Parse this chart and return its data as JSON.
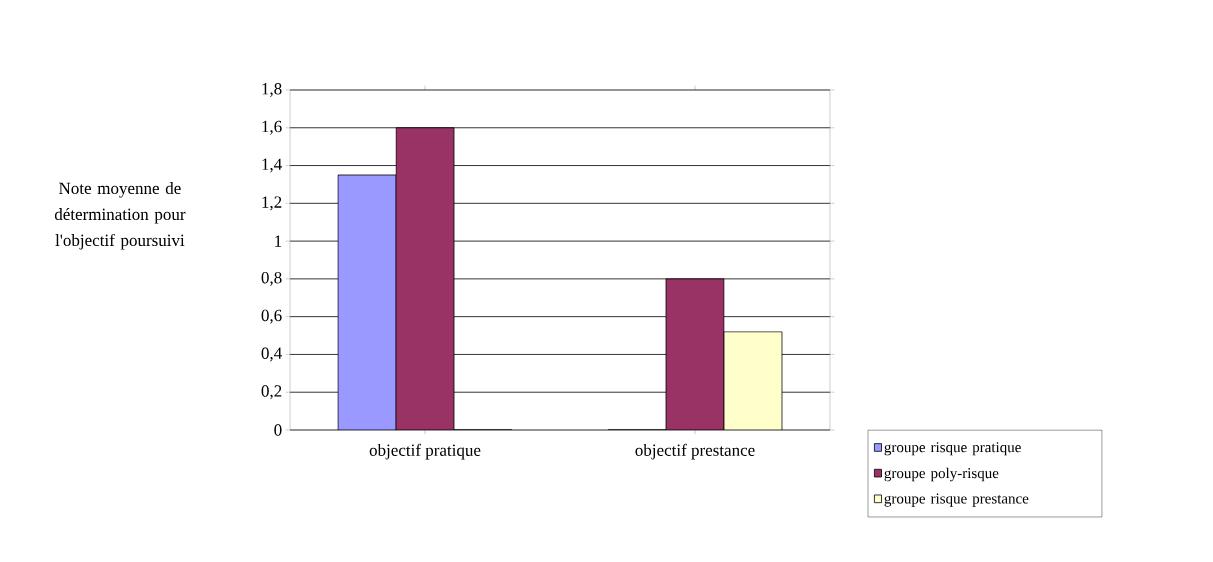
{
  "chart_data": {
    "type": "bar",
    "ylabel": "Note moyenne de détermination pour l'objectif poursuivi",
    "categories": [
      "objectif pratique",
      "objectif prestance"
    ],
    "series": [
      {
        "name": "groupe risque pratique",
        "color": "#9999ff",
        "values": [
          1.35,
          0
        ]
      },
      {
        "name": "groupe poly-risque",
        "color": "#993366",
        "values": [
          1.6,
          0.8
        ]
      },
      {
        "name": "groupe risque prestance",
        "color": "#ffffcc",
        "values": [
          0,
          0.52
        ]
      }
    ],
    "ylim": [
      0,
      1.8
    ],
    "yticks": [
      0,
      {
        "value": 0.2,
        "label": "0,2"
      },
      {
        "value": 0.4,
        "label": "0,4"
      },
      {
        "value": 0.6,
        "label": "0,6"
      },
      {
        "value": 0.8,
        "label": "0,8"
      },
      1,
      {
        "value": 1.2,
        "label": "1,2"
      },
      {
        "value": 1.4,
        "label": "1,4"
      },
      {
        "value": 1.6,
        "label": "1,6"
      },
      {
        "value": 1.8,
        "label": "1,8"
      }
    ],
    "grid": "y",
    "legend": "bottom right"
  }
}
